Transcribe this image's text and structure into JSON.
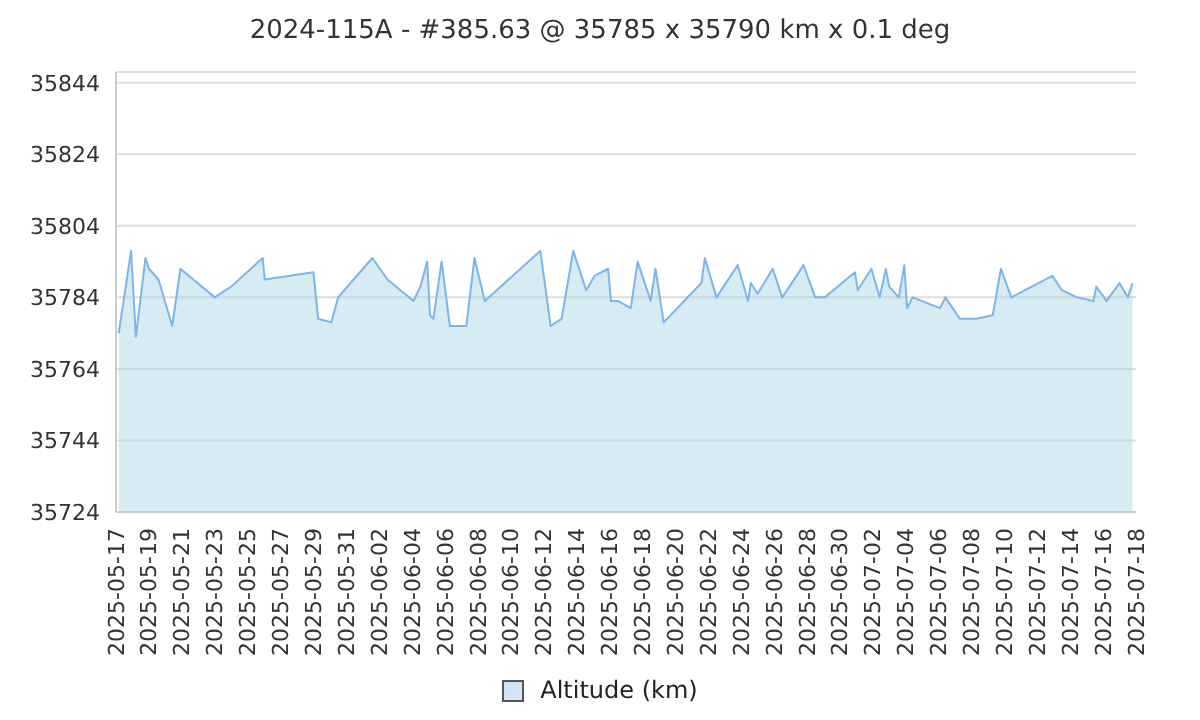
{
  "chart_data": {
    "type": "area",
    "title": "2024-115A - #385.63 @ 35785 x 35790 km x 0.1 deg",
    "x": [
      "2025-05-17T04:00",
      "2025-05-17T22:00",
      "2025-05-18T05:00",
      "2025-05-18T19:00",
      "2025-05-19T00:00",
      "2025-05-19T14:00",
      "2025-05-20T10:00",
      "2025-05-20T22:00",
      "2025-05-23T00:00",
      "2025-05-24T00:00",
      "2025-05-25T22:00",
      "2025-05-26T01:00",
      "2025-05-29T00:00",
      "2025-05-29T07:00",
      "2025-05-30T02:00",
      "2025-05-30T12:00",
      "2025-06-01T14:00",
      "2025-06-02T12:00",
      "2025-06-04T02:00",
      "2025-06-04T12:00",
      "2025-06-04T22:00",
      "2025-06-05T02:00",
      "2025-06-05T07:00",
      "2025-06-05T19:00",
      "2025-06-06T07:00",
      "2025-06-07T07:00",
      "2025-06-07T19:00",
      "2025-06-08T10:00",
      "2025-06-11T19:00",
      "2025-06-12T10:00",
      "2025-06-13T02:00",
      "2025-06-13T19:00",
      "2025-06-14T14:00",
      "2025-06-15T02:00",
      "2025-06-15T22:00",
      "2025-06-16T02:00",
      "2025-06-16T12:00",
      "2025-06-17T07:00",
      "2025-06-17T17:00",
      "2025-06-18T12:00",
      "2025-06-18T19:00",
      "2025-06-19T07:00",
      "2025-06-21T14:00",
      "2025-06-21T19:00",
      "2025-06-22T12:00",
      "2025-06-23T19:00",
      "2025-06-24T10:00",
      "2025-06-24T14:00",
      "2025-06-25T00:00",
      "2025-06-25T22:00",
      "2025-06-26T12:00",
      "2025-06-27T19:00",
      "2025-06-28T12:00",
      "2025-06-29T02:00",
      "2025-06-30T22:00",
      "2025-07-01T02:00",
      "2025-07-01T22:00",
      "2025-07-02T10:00",
      "2025-07-02T19:00",
      "2025-07-03T00:00",
      "2025-07-03T14:00",
      "2025-07-03T22:00",
      "2025-07-04T02:00",
      "2025-07-04T10:00",
      "2025-07-06T02:00",
      "2025-07-06T10:00",
      "2025-07-07T07:00",
      "2025-07-08T07:00",
      "2025-07-09T07:00",
      "2025-07-09T19:00",
      "2025-07-10T10:00",
      "2025-07-12T22:00",
      "2025-07-13T12:00",
      "2025-07-14T10:00",
      "2025-07-15T10:00",
      "2025-07-15T14:00",
      "2025-07-16T05:00",
      "2025-07-17T00:00",
      "2025-07-17T12:00",
      "2025-07-17T19:00"
    ],
    "series": [
      {
        "name": "Altitude (km)",
        "color": "#7cb5ec",
        "values": [
          35774,
          35797,
          35773,
          35795,
          35792,
          35789,
          35776,
          35792,
          35784,
          35787,
          35795,
          35789,
          35791,
          35778,
          35777,
          35784,
          35795,
          35789,
          35783,
          35787,
          35794,
          35779,
          35778,
          35794,
          35776,
          35776,
          35795,
          35783,
          35797,
          35776,
          35778,
          35797,
          35786,
          35790,
          35792,
          35783,
          35783,
          35781,
          35794,
          35783,
          35792,
          35777,
          35788,
          35795,
          35784,
          35793,
          35783,
          35788,
          35785,
          35792,
          35784,
          35793,
          35784,
          35784,
          35791,
          35786,
          35792,
          35784,
          35792,
          35787,
          35784,
          35793,
          35781,
          35784,
          35781,
          35784,
          35778,
          35778,
          35779,
          35792,
          35784,
          35790,
          35786,
          35784,
          35783,
          35787,
          35783,
          35788,
          35784,
          35788
        ]
      }
    ],
    "xlim": [
      "2025-05-17",
      "2025-07-18"
    ],
    "xticks": [
      "2025-05-17",
      "2025-05-19",
      "2025-05-21",
      "2025-05-23",
      "2025-05-25",
      "2025-05-27",
      "2025-05-29",
      "2025-05-31",
      "2025-06-02",
      "2025-06-04",
      "2025-06-06",
      "2025-06-08",
      "2025-06-10",
      "2025-06-12",
      "2025-06-14",
      "2025-06-16",
      "2025-06-18",
      "2025-06-20",
      "2025-06-22",
      "2025-06-24",
      "2025-06-26",
      "2025-06-28",
      "2025-06-30",
      "2025-07-02",
      "2025-07-04",
      "2025-07-06",
      "2025-07-08",
      "2025-07-10",
      "2025-07-12",
      "2025-07-14",
      "2025-07-16",
      "2025-07-18"
    ],
    "ylim": [
      35724,
      35847
    ],
    "yticks": [
      35724,
      35744,
      35764,
      35784,
      35804,
      35824,
      35844
    ],
    "grid": "y",
    "legend": "bottom",
    "marker": "none"
  }
}
